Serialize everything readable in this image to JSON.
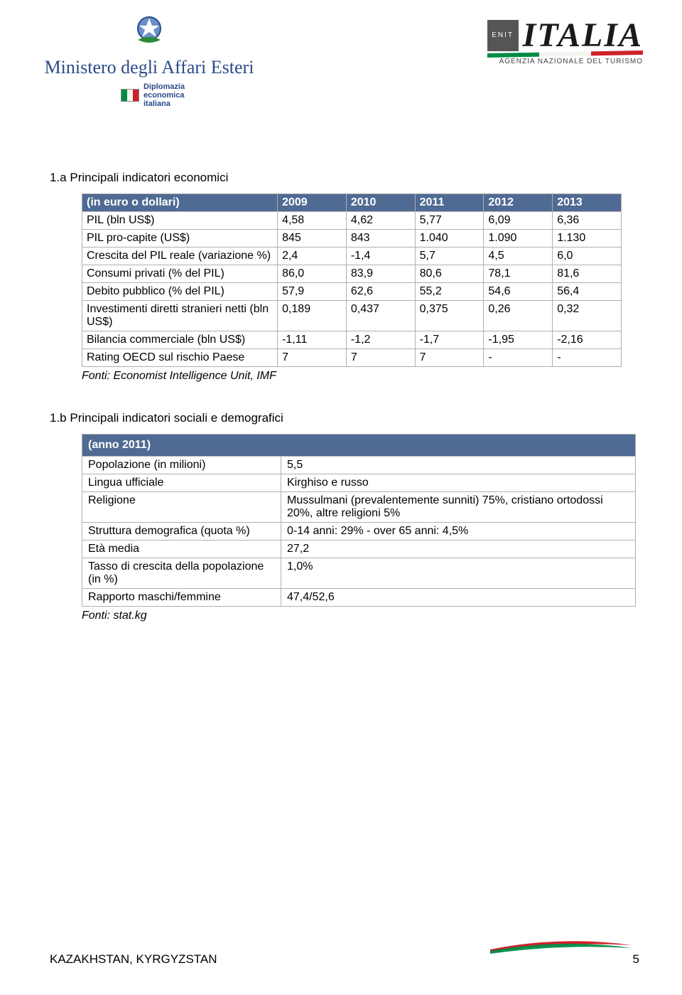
{
  "header": {
    "minister": "Ministero degli Affari Esteri",
    "diplo_line1": "Diplomazia",
    "diplo_line2": "economica",
    "diplo_line3": "italiana",
    "enit_box": "ENIT",
    "enit_name": "ITALIA",
    "enit_tag": "AGENZIA NAZIONALE DEL TURISMO"
  },
  "section1": {
    "title": "1.a Principali indicatori economici",
    "header_label": "(in euro o dollari)",
    "years": [
      "2009",
      "2010",
      "2011",
      "2012",
      "2013"
    ],
    "rows": [
      {
        "label": "PIL (bln US$)",
        "v": [
          "4,58",
          "4,62",
          "5,77",
          "6,09",
          "6,36"
        ]
      },
      {
        "label": "PIL pro-capite (US$)",
        "v": [
          "845",
          "843",
          "1.040",
          "1.090",
          "1.130"
        ]
      },
      {
        "label": "Crescita del PIL reale (variazione %)",
        "v": [
          "2,4",
          "-1,4",
          "5,7",
          "4,5",
          "6,0"
        ]
      },
      {
        "label": "Consumi privati (% del PIL)",
        "v": [
          "86,0",
          "83,9",
          "80,6",
          "78,1",
          "81,6"
        ]
      },
      {
        "label": "Debito pubblico (% del PIL)",
        "v": [
          "57,9",
          "62,6",
          "55,2",
          "54,6",
          "56,4"
        ]
      },
      {
        "label": "Investimenti diretti stranieri netti (bln US$)",
        "v": [
          "0,189",
          "0,437",
          "0,375",
          "0,26",
          "0,32"
        ]
      },
      {
        "label": "Bilancia commerciale (bln US$)",
        "v": [
          "-1,11",
          "-1,2",
          "-1,7",
          "-1,95",
          "-2,16"
        ]
      },
      {
        "label": "Rating OECD sul rischio Paese",
        "v": [
          "7",
          "7",
          "7",
          "-",
          "-"
        ]
      }
    ],
    "source": "Fonti: Economist Intelligence Unit, IMF"
  },
  "section2": {
    "title": "1.b Principali indicatori sociali e demografici",
    "header": "(anno 2011)",
    "rows": [
      {
        "k": "Popolazione (in milioni)",
        "v": "5,5"
      },
      {
        "k": "Lingua ufficiale",
        "v": "Kirghiso e russo"
      },
      {
        "k": "Religione",
        "v": "Mussulmani (prevalentemente sunniti) 75%, cristiano ortodossi 20%, altre religioni 5%"
      },
      {
        "k": "Struttura demografica (quota %)",
        "v": "0-14 anni: 29% - over 65 anni: 4,5%"
      },
      {
        "k": "Età media",
        "v": "27,2"
      },
      {
        "k": "Tasso di crescita della popolazione (in %)",
        "v": "1,0%"
      },
      {
        "k": "Rapporto maschi/femmine",
        "v": "47,4/52,6"
      }
    ],
    "source": "Fonti: stat.kg"
  },
  "footer": {
    "text": "KAZAKHSTAN, KYRGYZSTAN",
    "page": "5"
  },
  "palette": {
    "table_header_bg": "#4f6a93",
    "table_header_fg": "#ffffff",
    "border": "#b0b0b0",
    "flag_green": "#008c45",
    "flag_white": "#f4f5f0",
    "flag_red": "#cd212a"
  }
}
